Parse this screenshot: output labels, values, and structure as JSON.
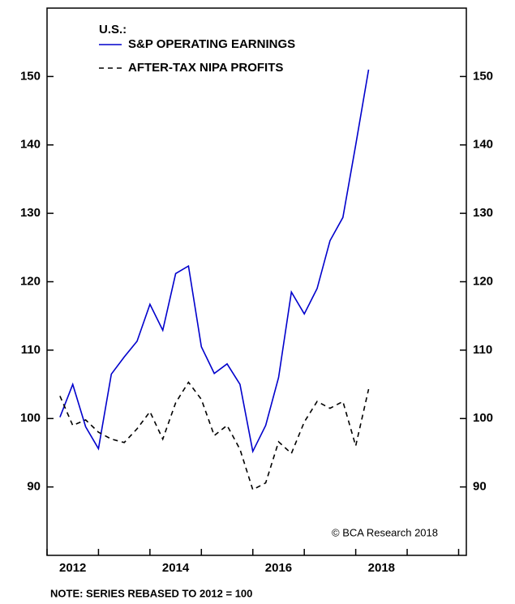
{
  "chart_data": {
    "type": "line",
    "legend_title": "U.S.:",
    "note": "NOTE: SERIES REBASED TO 2012 = 100",
    "annotation": "© BCA Research 2018",
    "x": [
      2012.25,
      2012.5,
      2012.75,
      2013.0,
      2013.25,
      2013.5,
      2013.75,
      2014.0,
      2014.25,
      2014.5,
      2014.75,
      2015.0,
      2015.25,
      2015.5,
      2015.75,
      2016.0,
      2016.25,
      2016.5,
      2016.75,
      2017.0,
      2017.25,
      2017.5,
      2017.75,
      2018.0,
      2018.25
    ],
    "series": [
      {
        "name": "S&P OPERATING EARNINGS",
        "color": "#0000cc",
        "dash": false,
        "values": [
          100.2,
          105,
          98.8,
          95.6,
          106.5,
          109,
          111.3,
          116.7,
          112.9,
          121.2,
          122.3,
          110.5,
          106.6,
          108,
          105,
          95.2,
          99,
          106,
          118.5,
          115.3,
          119,
          126,
          129.4,
          140,
          151
        ]
      },
      {
        "name": "AFTER-TAX NIPA PROFITS",
        "color": "#000000",
        "dash": true,
        "values": [
          103.3,
          99,
          99.8,
          98,
          97,
          96.5,
          98.5,
          101,
          97,
          102.3,
          105.3,
          102.8,
          97.5,
          99,
          95.5,
          89.6,
          90.6,
          96.6,
          94.9,
          99.5,
          102.5,
          101.5,
          102.5,
          96,
          104.3
        ]
      }
    ],
    "xlim": [
      2012,
      2020.15
    ],
    "xticks": [
      2012,
      2013,
      2014,
      2015,
      2016,
      2017,
      2018,
      2019,
      2020
    ],
    "xlabels": [
      {
        "value": 2012.5,
        "label": "2012"
      },
      {
        "value": 2014.5,
        "label": "2014"
      },
      {
        "value": 2016.5,
        "label": "2016"
      },
      {
        "value": 2018.5,
        "label": "2018"
      }
    ],
    "ylim": [
      80,
      160
    ],
    "yticks": [
      90,
      100,
      110,
      120,
      130,
      140,
      150
    ],
    "grid": false
  }
}
